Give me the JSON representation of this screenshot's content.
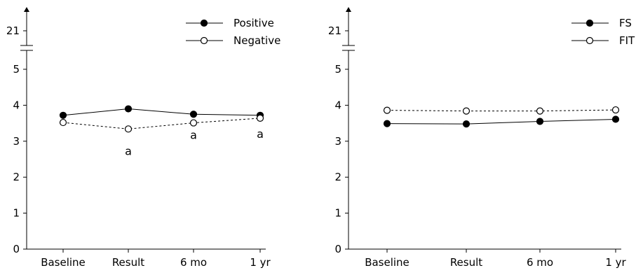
{
  "chart_data": [
    {
      "type": "line",
      "title": "",
      "xlabel": "",
      "ylabel": "",
      "categories": [
        "Baseline",
        "Result",
        "6 mo",
        "1 yr"
      ],
      "yticks": [
        "0",
        "1",
        "2",
        "3",
        "4",
        "5",
        "21"
      ],
      "axis_break": "between 5 and 21",
      "ylim": [
        0,
        5.5
      ],
      "grid": false,
      "legend_position": "top-right",
      "series": [
        {
          "name": "Positive",
          "values": [
            3.72,
            3.9,
            3.75,
            3.72
          ],
          "marker": "filled-circle",
          "line": "solid"
        },
        {
          "name": "Negative",
          "values": [
            3.52,
            3.34,
            3.51,
            3.64
          ],
          "marker": "open-circle",
          "line": "dashed"
        }
      ],
      "annotations": [
        {
          "text": "a",
          "category": "Result"
        },
        {
          "text": "a",
          "category": "6 mo"
        },
        {
          "text": "a",
          "category": "1 yr"
        }
      ]
    },
    {
      "type": "line",
      "title": "",
      "xlabel": "",
      "ylabel": "",
      "categories": [
        "Baseline",
        "Result",
        "6 mo",
        "1 yr"
      ],
      "yticks": [
        "0",
        "1",
        "2",
        "3",
        "4",
        "5",
        "21"
      ],
      "axis_break": "between 5 and 21",
      "ylim": [
        0,
        5.5
      ],
      "grid": false,
      "legend_position": "top-right",
      "series": [
        {
          "name": "FS",
          "values": [
            3.49,
            3.48,
            3.55,
            3.61
          ],
          "marker": "filled-circle",
          "line": "solid"
        },
        {
          "name": "FIT",
          "values": [
            3.86,
            3.84,
            3.84,
            3.87
          ],
          "marker": "open-circle",
          "line": "dashed"
        }
      ],
      "annotations": []
    }
  ]
}
